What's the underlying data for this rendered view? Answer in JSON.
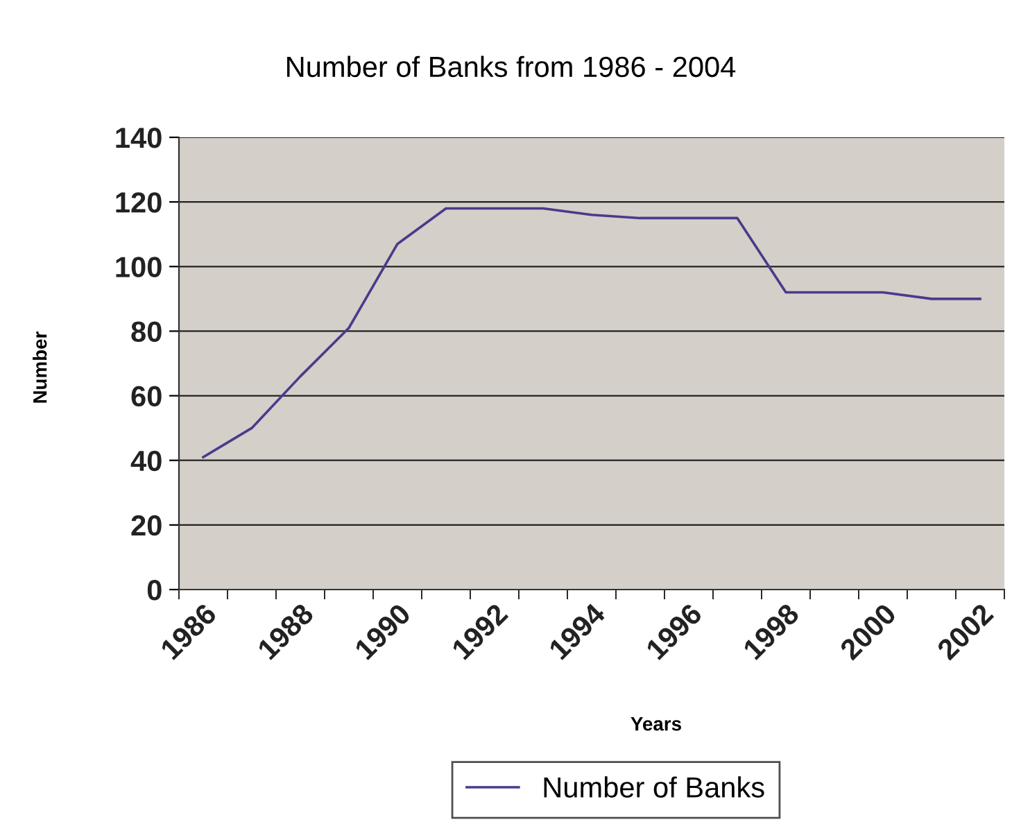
{
  "chart_data": {
    "type": "line",
    "title": "Number of Banks from 1986 - 2004",
    "xlabel": "Years",
    "ylabel": "Number",
    "categories": [
      "1986",
      null,
      "1988",
      null,
      "1990",
      null,
      "1992",
      null,
      "1994",
      null,
      "1996",
      null,
      "1998",
      null,
      "2000",
      null,
      "2002"
    ],
    "series": [
      {
        "name": "Number of Banks",
        "color": "#4b3a8c",
        "values": [
          41,
          50,
          66,
          81,
          107,
          118,
          118,
          118,
          116,
          115,
          115,
          115,
          92,
          92,
          92,
          90,
          90
        ]
      }
    ],
    "ylim": [
      0,
      140
    ],
    "yticks": [
      0,
      20,
      40,
      60,
      80,
      100,
      120,
      140
    ],
    "grid": "y",
    "legend": "bottom",
    "marker": "none",
    "line_style": "solid"
  }
}
